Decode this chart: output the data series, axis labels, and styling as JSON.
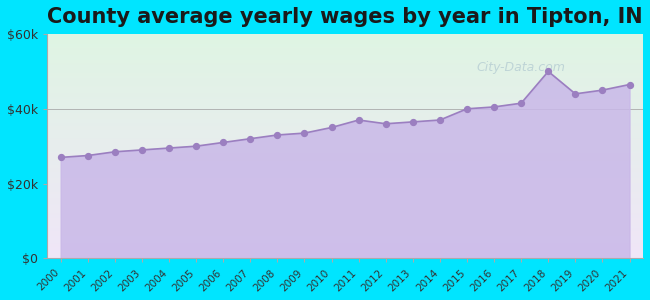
{
  "title": "County average yearly wages by year in Tipton, IN",
  "years": [
    2000,
    2001,
    2002,
    2003,
    2004,
    2005,
    2006,
    2007,
    2008,
    2009,
    2010,
    2011,
    2012,
    2013,
    2014,
    2015,
    2016,
    2017,
    2018,
    2019,
    2020,
    2021
  ],
  "wages": [
    27000,
    27500,
    28500,
    29000,
    29500,
    30000,
    31000,
    32000,
    33000,
    33500,
    35000,
    37000,
    36000,
    36500,
    37000,
    40000,
    40500,
    41500,
    50000,
    44000,
    45000,
    46500
  ],
  "fill_color": "#c9b8e8",
  "line_color": "#9b7fc0",
  "marker_color": "#9b7fc0",
  "bg_outer": "#00e5ff",
  "bg_plot_top": "#dff5e3",
  "bg_plot_bottom": "#f0e6f8",
  "ytick_labels": [
    "$0",
    "$20k",
    "$40k",
    "$60k"
  ],
  "ytick_values": [
    0,
    20000,
    40000,
    60000
  ],
  "ylim": [
    0,
    60000
  ],
  "title_fontsize": 15,
  "title_color": "#1a1a1a",
  "tick_color": "#333333",
  "watermark": "City-Data.com"
}
